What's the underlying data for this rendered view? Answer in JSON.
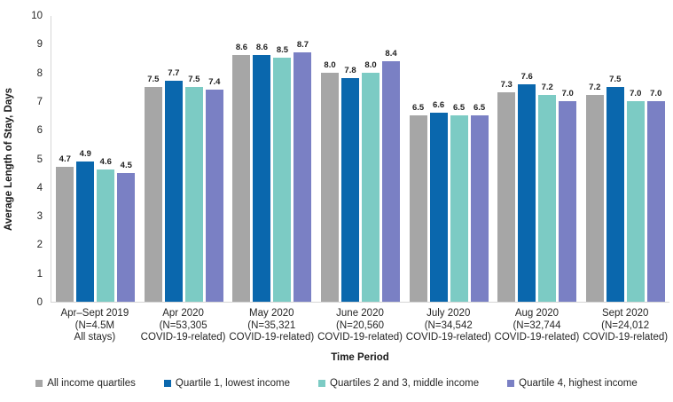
{
  "chart_data": {
    "type": "bar",
    "title": "",
    "ylabel": "Average Length of Stay, Days",
    "xlabel": "Time Period",
    "ylim": [
      0,
      10
    ],
    "ytick_step": 1,
    "grid": false,
    "legend_position": "bottom",
    "patterned_group_index": 0,
    "categories": [
      [
        "Apr–Sept 2019",
        "(N=4.5M",
        "All stays)"
      ],
      [
        "Apr 2020",
        "(N=53,305",
        "COVID-19-related)"
      ],
      [
        "May 2020",
        "(N=35,321",
        "COVID-19-related)"
      ],
      [
        "June 2020",
        "(N=20,560",
        "COVID-19-related)"
      ],
      [
        "July 2020",
        "(N=34,542",
        "COVID-19-related)"
      ],
      [
        "Aug 2020",
        "(N=32,744",
        "COVID-19-related)"
      ],
      [
        "Sept 2020",
        "(N=24,012",
        "COVID-19-related)"
      ]
    ],
    "series": [
      {
        "name": "All income quartiles",
        "color": "#A6A6A6",
        "values": [
          4.7,
          7.5,
          8.6,
          8.0,
          6.5,
          7.3,
          7.2
        ]
      },
      {
        "name": "Quartile 1, lowest income",
        "color": "#0A67AD",
        "values": [
          4.9,
          7.7,
          8.6,
          7.8,
          6.6,
          7.6,
          7.5
        ]
      },
      {
        "name": "Quartiles 2 and 3, middle income",
        "color": "#7CCBC4",
        "values": [
          4.6,
          7.5,
          8.5,
          8.0,
          6.5,
          7.2,
          7.0
        ]
      },
      {
        "name": "Quartile 4, highest income",
        "color": "#7A80C4",
        "values": [
          4.5,
          7.4,
          8.7,
          8.4,
          6.5,
          7.0,
          7.0
        ]
      }
    ]
  }
}
